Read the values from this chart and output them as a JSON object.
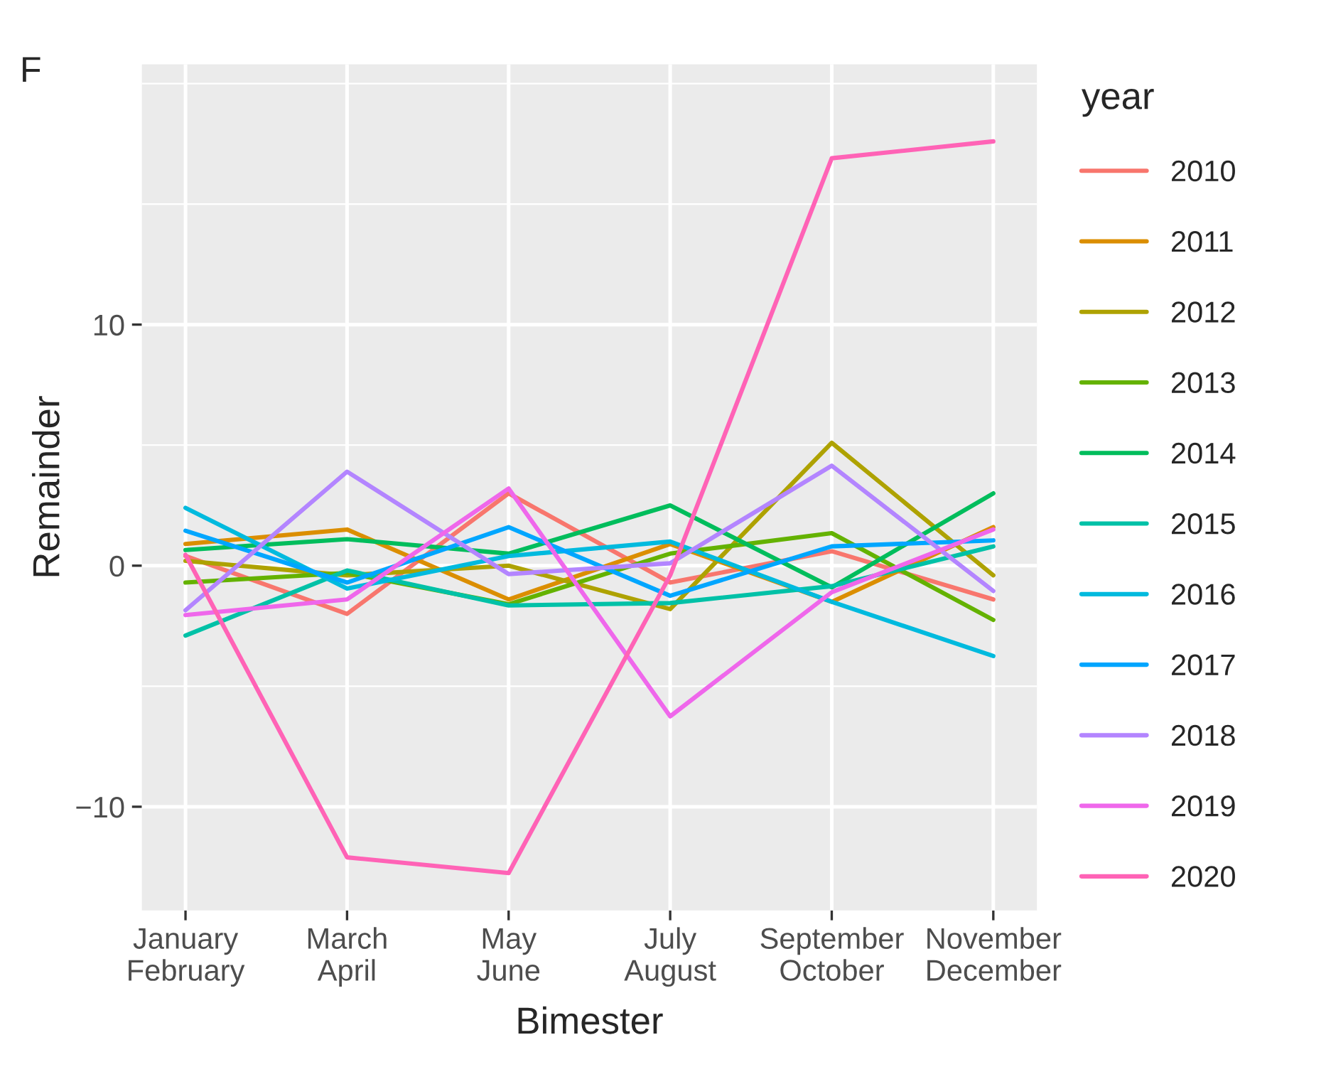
{
  "chart_data": {
    "type": "line",
    "title": "F",
    "xlabel": "Bimester",
    "ylabel": "Remainder",
    "legend_title": "year",
    "legend": "right",
    "grid": true,
    "categories": [
      "January\nFebruary",
      "March\nApril",
      "May\nJune",
      "July\nAugust",
      "September\nOctober",
      "November\nDecember"
    ],
    "ylim": [
      -14.3,
      20.8
    ],
    "yticks": [
      {
        "value": -10,
        "label": "−10"
      },
      0,
      10
    ],
    "series": [
      {
        "name": "2010",
        "color": "#F8766D",
        "values": [
          0.4,
          -2.0,
          3.0,
          -0.7,
          0.6,
          -1.4
        ]
      },
      {
        "name": "2011",
        "color": "#DB8E00",
        "values": [
          0.9,
          1.5,
          -1.4,
          0.9,
          -1.5,
          1.6
        ]
      },
      {
        "name": "2012",
        "color": "#AEA200",
        "values": [
          0.2,
          -0.4,
          0.0,
          -1.8,
          5.1,
          -0.4
        ]
      },
      {
        "name": "2013",
        "color": "#64B200",
        "values": [
          -0.7,
          -0.3,
          -1.6,
          0.5,
          1.35,
          -2.25
        ]
      },
      {
        "name": "2014",
        "color": "#00BD5C",
        "values": [
          0.65,
          1.1,
          0.5,
          2.5,
          -0.9,
          3.0
        ]
      },
      {
        "name": "2015",
        "color": "#00C1A7",
        "values": [
          -2.9,
          -0.2,
          -1.65,
          -1.55,
          -0.85,
          0.8
        ]
      },
      {
        "name": "2016",
        "color": "#00BADE",
        "values": [
          2.4,
          -0.95,
          0.4,
          1.0,
          -1.5,
          -3.75
        ]
      },
      {
        "name": "2017",
        "color": "#00A6FF",
        "values": [
          1.45,
          -0.7,
          1.6,
          -1.25,
          0.8,
          1.05
        ]
      },
      {
        "name": "2018",
        "color": "#B385FF",
        "values": [
          -1.85,
          3.9,
          -0.35,
          0.1,
          4.15,
          -1.05
        ]
      },
      {
        "name": "2019",
        "color": "#EF67EB",
        "values": [
          -2.05,
          -1.4,
          3.2,
          -6.25,
          -1.1,
          1.5
        ]
      },
      {
        "name": "2020",
        "color": "#FF63B6",
        "values": [
          0.45,
          -12.1,
          -12.75,
          -0.4,
          16.9,
          17.6
        ]
      }
    ]
  }
}
